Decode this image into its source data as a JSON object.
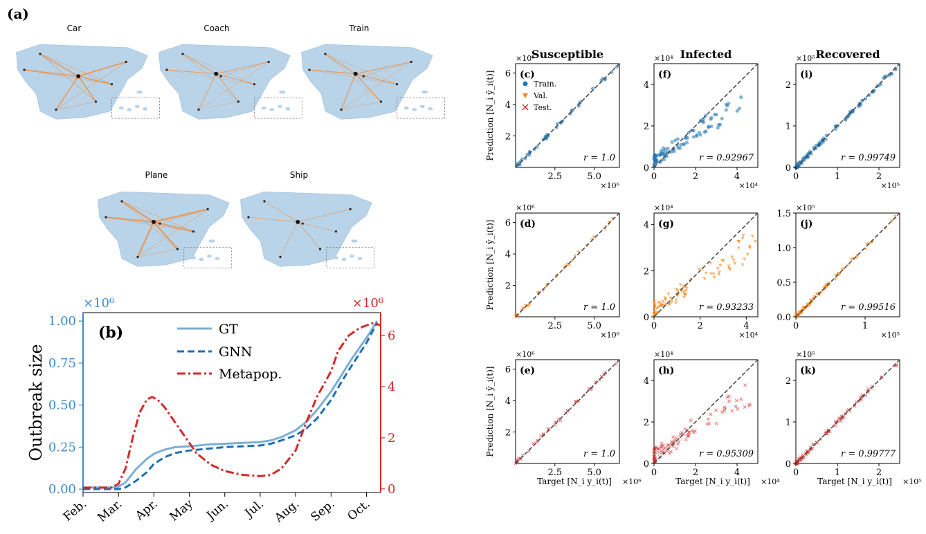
{
  "panel_a": {
    "letter": "(a)",
    "maps": [
      {
        "title": "Car"
      },
      {
        "title": "Coach"
      },
      {
        "title": "Train"
      },
      {
        "title": "Plane"
      },
      {
        "title": "Ship"
      }
    ]
  },
  "colors": {
    "gt": "#7bafd4",
    "gnn": "#1f6fb4",
    "metapop": "#d62728",
    "left_axis": "#3a8cc6",
    "right_axis": "#d62728",
    "train": "#1f77b4",
    "val": "#ff7f0e",
    "test": "#d62728",
    "map_land": "#b9d3e8",
    "map_edge": "#f08c3a"
  },
  "chart_data": [
    {
      "type": "line",
      "panel": "(b)",
      "ylabel": "Outbreak size",
      "left_scale_label": "×10^6",
      "right_scale_label": "×10^6",
      "categories": [
        "Feb.",
        "Mar.",
        "Apr.",
        "May",
        "Jun.",
        "Jul.",
        "Aug.",
        "Sep.",
        "Oct."
      ],
      "left_ticks": [
        "0.00",
        "0.25",
        "0.50",
        "0.75",
        "1.00"
      ],
      "right_ticks": [
        "0",
        "2",
        "4",
        "6"
      ],
      "ylim_left": [
        -0.02,
        1.05
      ],
      "ylim_right": [
        -0.14,
        6.9
      ],
      "xlim": [
        0,
        8.4
      ],
      "legend_position": "top-center",
      "series": [
        {
          "name": "GT",
          "axis": "left",
          "style": "solid",
          "x": [
            0,
            0.9,
            1.0,
            1.2,
            1.5,
            1.8,
            2.0,
            2.3,
            2.6,
            3.0,
            3.5,
            4.0,
            4.5,
            5.0,
            5.3,
            5.6,
            6.0,
            6.3,
            6.6,
            7.0,
            7.3,
            7.6,
            8.0,
            8.3
          ],
          "y": [
            0.01,
            0.01,
            0.015,
            0.04,
            0.12,
            0.18,
            0.21,
            0.235,
            0.25,
            0.255,
            0.265,
            0.27,
            0.275,
            0.28,
            0.29,
            0.31,
            0.35,
            0.4,
            0.47,
            0.58,
            0.68,
            0.78,
            0.9,
            1.0
          ]
        },
        {
          "name": "GNN",
          "axis": "left",
          "style": "dashed",
          "x": [
            0,
            1.0,
            1.2,
            1.5,
            1.8,
            2.0,
            2.3,
            2.6,
            3.0,
            3.5,
            4.0,
            4.5,
            5.0,
            5.3,
            5.6,
            6.0,
            6.3,
            6.6,
            7.0,
            7.3,
            7.6,
            8.0,
            8.3
          ],
          "y": [
            0.0,
            0.0,
            0.01,
            0.05,
            0.1,
            0.15,
            0.19,
            0.215,
            0.23,
            0.24,
            0.25,
            0.255,
            0.26,
            0.27,
            0.29,
            0.32,
            0.36,
            0.42,
            0.53,
            0.64,
            0.74,
            0.87,
            0.99
          ]
        },
        {
          "name": "Metapop.",
          "axis": "right",
          "style": "dashdot",
          "x": [
            0,
            0.8,
            1.0,
            1.2,
            1.4,
            1.6,
            1.8,
            1.95,
            2.1,
            2.3,
            2.6,
            2.9,
            3.2,
            3.6,
            4.0,
            4.5,
            5.0,
            5.3,
            5.6,
            6.0,
            6.3,
            6.6,
            7.0,
            7.2,
            7.5,
            7.8,
            8.0,
            8.2,
            8.4
          ],
          "y": [
            0.05,
            0.05,
            0.2,
            0.8,
            2.0,
            3.0,
            3.5,
            3.6,
            3.5,
            3.2,
            2.6,
            2.0,
            1.4,
            0.95,
            0.7,
            0.55,
            0.5,
            0.55,
            0.8,
            1.5,
            2.6,
            3.6,
            4.6,
            5.4,
            6.0,
            6.3,
            6.4,
            6.5,
            6.4
          ]
        }
      ]
    },
    {
      "type": "scatter",
      "title_columns": [
        "Susceptible",
        "Infected",
        "Recovered"
      ],
      "ylabel": "Prediction [N_i ŷ_i(t)]",
      "xlabel": "Target [N_i y_i(t)]",
      "legend": [
        "Train.",
        "Val.",
        "Test."
      ],
      "panels": [
        {
          "label": "(c)",
          "row": 0,
          "col": 0,
          "set": "train",
          "r": "r = 1.0",
          "xticks": [
            "2.5",
            "5.0"
          ],
          "yticks": [
            "2",
            "4",
            "6"
          ],
          "xlim": [
            0,
            6.6
          ],
          "ylim": [
            0,
            6.6
          ],
          "x_exp": "×10^6",
          "y_exp": "×10^6"
        },
        {
          "label": "(f)",
          "row": 0,
          "col": 1,
          "set": "train",
          "r": "r = 0.92967",
          "xticks": [
            "0",
            "2",
            "4"
          ],
          "yticks": [
            "0",
            "2",
            "4"
          ],
          "xlim": [
            0,
            5.0
          ],
          "ylim": [
            0,
            5.0
          ],
          "x_exp": "×10^4",
          "y_exp": "×10^4"
        },
        {
          "label": "(i)",
          "row": 0,
          "col": 2,
          "set": "train",
          "r": "r = 0.99749",
          "xticks": [
            "0",
            "1",
            "2"
          ],
          "yticks": [
            "0",
            "1",
            "2"
          ],
          "xlim": [
            0,
            2.5
          ],
          "ylim": [
            0,
            2.5
          ],
          "x_exp": "×10^5",
          "y_exp": "×10^5"
        },
        {
          "label": "(d)",
          "row": 1,
          "col": 0,
          "set": "val",
          "r": "r = 1.0",
          "xticks": [
            "2.5",
            "5.0"
          ],
          "yticks": [
            "2",
            "4",
            "6"
          ],
          "xlim": [
            0,
            6.6
          ],
          "ylim": [
            0,
            6.6
          ],
          "x_exp": "×10^6",
          "y_exp": "×10^6"
        },
        {
          "label": "(g)",
          "row": 1,
          "col": 1,
          "set": "val",
          "r": "r = 0.93233",
          "xticks": [
            "0",
            "2",
            "4"
          ],
          "yticks": [
            "0",
            "2",
            "4"
          ],
          "xlim": [
            0,
            4.5
          ],
          "ylim": [
            0,
            4.5
          ],
          "x_exp": "×10^4",
          "y_exp": "×10^4"
        },
        {
          "label": "(j)",
          "row": 1,
          "col": 2,
          "set": "val",
          "r": "r = 0.99516",
          "xticks": [
            "0",
            "1"
          ],
          "yticks": [
            "0.0",
            "0.5",
            "1.0",
            "1.5"
          ],
          "xlim": [
            0,
            1.5
          ],
          "ylim": [
            0,
            1.5
          ],
          "x_exp": "×10^5",
          "y_exp": "×10^5"
        },
        {
          "label": "(e)",
          "row": 2,
          "col": 0,
          "set": "test",
          "r": "r = 1.0",
          "xticks": [
            "2.5",
            "5.0"
          ],
          "yticks": [
            "2",
            "4",
            "6"
          ],
          "xlim": [
            0,
            6.6
          ],
          "ylim": [
            0,
            6.6
          ],
          "x_exp": "×10^6",
          "y_exp": "×10^6"
        },
        {
          "label": "(h)",
          "row": 2,
          "col": 1,
          "set": "test",
          "r": "r = 0.95309",
          "xticks": [
            "0",
            "2",
            "4"
          ],
          "yticks": [
            "0",
            "2",
            "4"
          ],
          "xlim": [
            0,
            5.0
          ],
          "ylim": [
            0,
            5.0
          ],
          "x_exp": "×10^4",
          "y_exp": "×10^4"
        },
        {
          "label": "(k)",
          "row": 2,
          "col": 2,
          "set": "test",
          "r": "r = 0.99777",
          "xticks": [
            "0",
            "1",
            "2"
          ],
          "yticks": [
            "0",
            "1",
            "2"
          ],
          "xlim": [
            0,
            2.5
          ],
          "ylim": [
            0,
            2.5
          ],
          "x_exp": "×10^5",
          "y_exp": "×10^5"
        }
      ]
    }
  ]
}
